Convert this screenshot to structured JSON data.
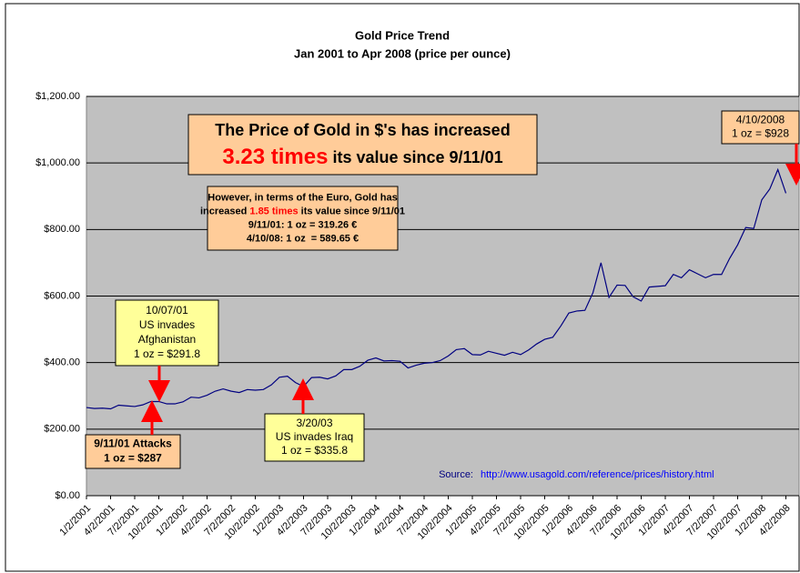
{
  "chart_data": {
    "type": "line",
    "title": "Gold Price Trend",
    "subtitle": "Jan 2001 to Apr 2008 (price per ounce)",
    "categories": [
      "1/2/2001",
      null,
      null,
      "4/2/2001",
      null,
      null,
      "7/2/2001",
      null,
      null,
      "10/2/2001",
      null,
      null,
      "1/2/2002",
      null,
      null,
      "4/2/2002",
      null,
      null,
      "7/2/2002",
      null,
      null,
      "10/2/2002",
      null,
      null,
      "1/2/2003",
      null,
      null,
      "4/2/2003",
      null,
      null,
      "7/2/2003",
      null,
      null,
      "10/2/2003",
      null,
      null,
      "1/2/2004",
      null,
      null,
      "4/2/2004",
      null,
      null,
      "7/2/2004",
      null,
      null,
      "10/2/2004",
      null,
      null,
      "1/2/2005",
      null,
      null,
      "4/2/2005",
      null,
      null,
      "7/2/2005",
      null,
      null,
      "10/2/2005",
      null,
      null,
      "1/2/2006",
      null,
      null,
      "4/2/2006",
      null,
      null,
      "7/2/2006",
      null,
      null,
      "10/2/2006",
      null,
      null,
      "1/2/2007",
      null,
      null,
      "4/2/2007",
      null,
      null,
      "7/2/2007",
      null,
      null,
      "10/2/2007",
      null,
      null,
      "1/2/2008",
      null,
      null,
      "4/2/2008"
    ],
    "values": [
      265,
      262,
      263,
      261,
      272,
      270,
      268,
      273,
      283,
      283,
      276,
      276,
      282,
      296,
      294,
      302,
      314,
      321,
      314,
      310,
      319,
      317,
      319,
      333,
      356,
      359,
      340,
      328,
      355,
      356,
      351,
      360,
      379,
      379,
      389,
      407,
      414,
      405,
      406,
      404,
      384,
      392,
      398,
      400,
      406,
      420,
      439,
      442,
      424,
      423,
      434,
      428,
      422,
      431,
      424,
      438,
      456,
      470,
      476,
      510,
      549,
      555,
      557,
      610,
      700,
      596,
      633,
      632,
      598,
      585,
      627,
      629,
      631,
      665,
      655,
      679,
      667,
      655,
      665,
      665,
      713,
      754,
      806,
      803,
      889,
      922,
      980,
      909
    ],
    "color": "#000080",
    "ylim": [
      0,
      1200
    ],
    "yticks": [
      {
        "value": 0,
        "label": "$0.00"
      },
      {
        "value": 200,
        "label": "$200.00"
      },
      {
        "value": 400,
        "label": "$400.00"
      },
      {
        "value": 600,
        "label": "$600.00"
      },
      {
        "value": 800,
        "label": "$800.00"
      },
      {
        "value": 1000,
        "label": "$1,000.00"
      },
      {
        "value": 1200,
        "label": "$1,200.00"
      }
    ],
    "grid": true,
    "annotations": [
      {
        "lines": [
          [
            "The Price of Gold in $'s has increased"
          ],
          [
            {
              "text": "3.23 times",
              "color": "#ff0000"
            },
            " its value since 9/11/01"
          ]
        ]
      },
      {
        "lines": [
          [
            "However, in terms of the Euro, Gold has"
          ],
          [
            "increased ",
            {
              "text": "1.85 times",
              "color": "#ff0000"
            },
            " its value since 9/11/01"
          ],
          [
            "9/11/01: 1 oz = 319.26 €"
          ],
          [
            "4/10/08: 1 oz  = 589.65 €"
          ]
        ]
      },
      {
        "lines": [
          [
            "10/07/01"
          ],
          [
            "US invades"
          ],
          [
            "Afghanistan"
          ],
          [
            "1 oz = $291.8"
          ]
        ]
      },
      {
        "lines": [
          [
            "3/20/03"
          ],
          [
            "US invades Iraq"
          ],
          [
            "1 oz = $335.8"
          ]
        ]
      },
      {
        "lines": [
          [
            "9/11/01 Attacks"
          ],
          [
            "1 oz = $287"
          ]
        ]
      },
      {
        "lines": [
          [
            "4/10/2008"
          ],
          [
            "1 oz = $928"
          ]
        ]
      }
    ],
    "source_label": "Source:",
    "source_url": "http://www.usagold.com/reference/prices/history.html"
  }
}
